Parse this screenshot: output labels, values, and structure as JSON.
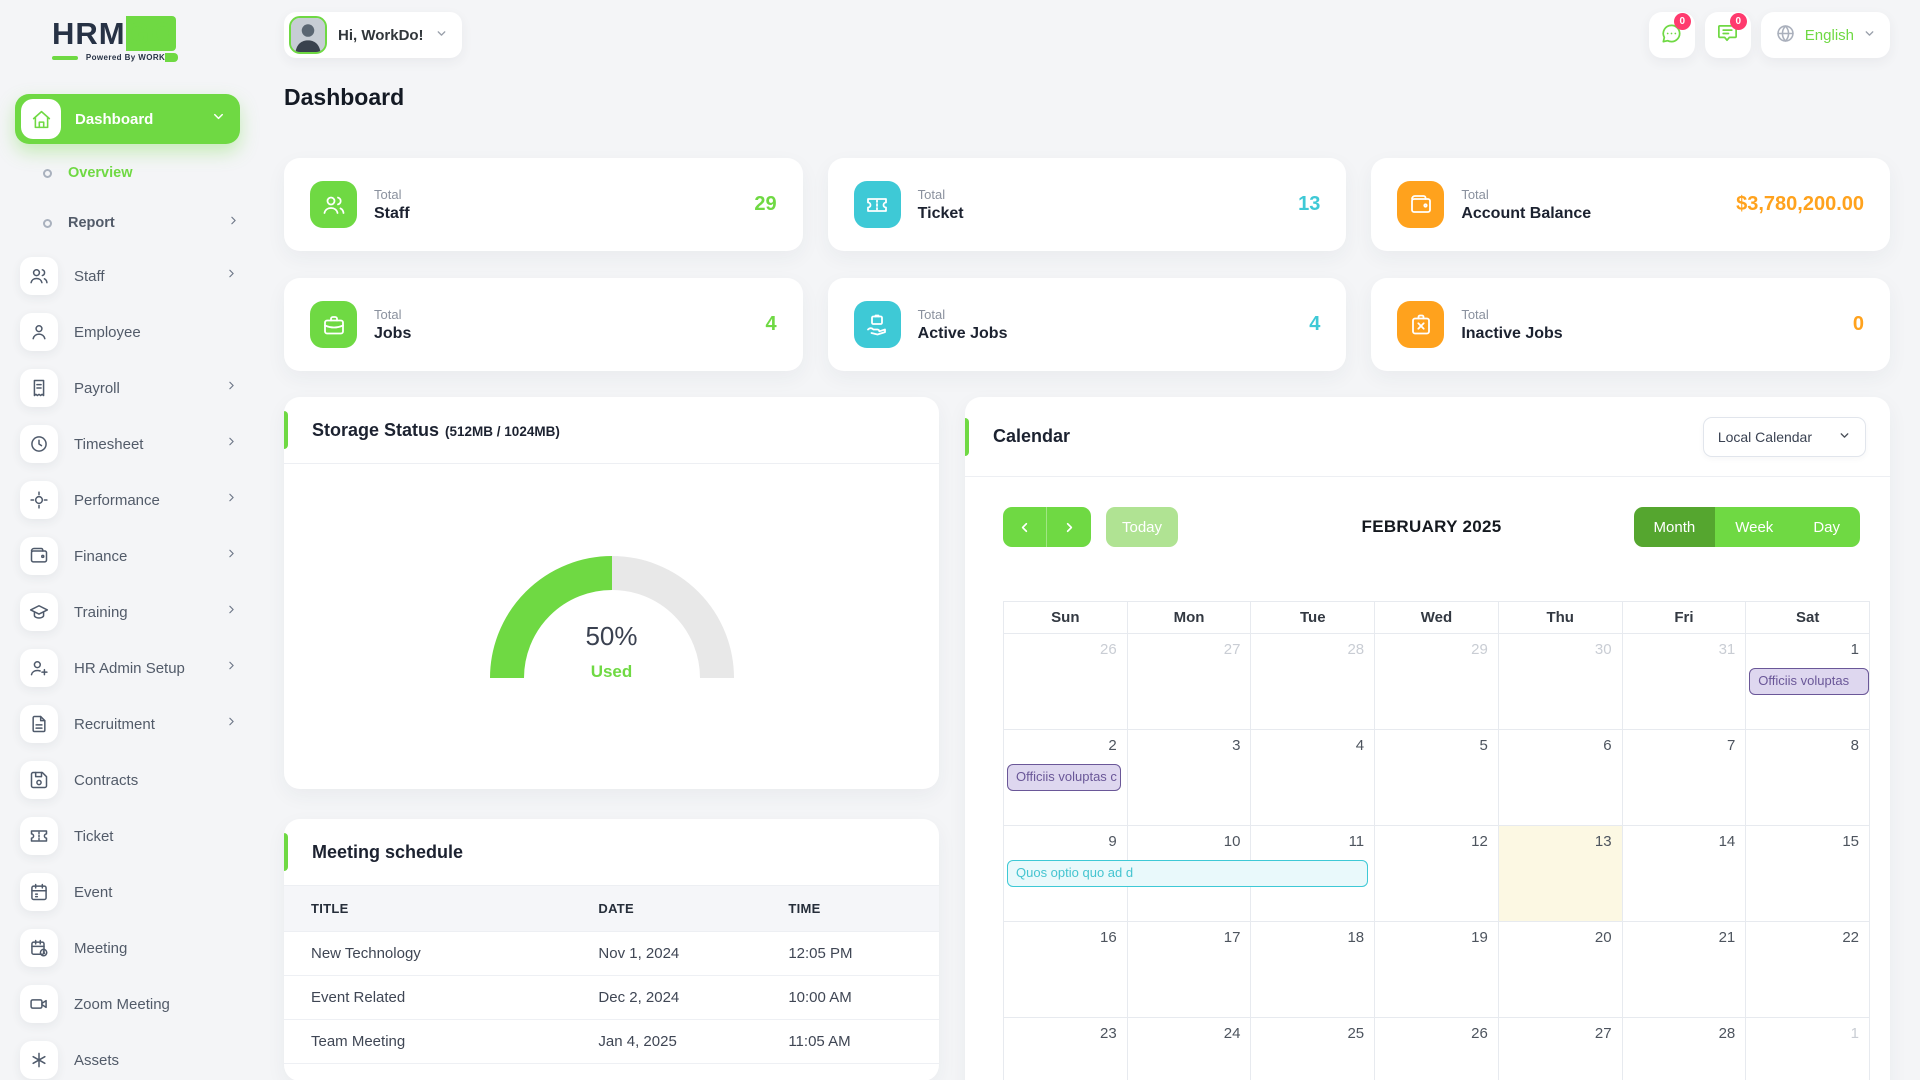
{
  "theme": {
    "primary": "#6fd943",
    "info": "#3ec9d6",
    "warning": "#ffa21d",
    "badge": "#ff3a6e"
  },
  "brand": {
    "name_primary": "HRM",
    "name_accent": "GO",
    "powered_prefix": "Powered By",
    "powered_word_dark": "WORK",
    "powered_word_accent": "DO"
  },
  "topbar": {
    "greeting": "Hi, WorkDo!",
    "messages_badge": "0",
    "notifications_badge": "0",
    "language": "English"
  },
  "sidebar": {
    "dashboard": {
      "label": "Dashboard",
      "icon": "home"
    },
    "sub_items": [
      {
        "label": "Overview",
        "active": true,
        "has_children": false
      },
      {
        "label": "Report",
        "active": false,
        "has_children": true
      }
    ],
    "items": [
      {
        "label": "Staff",
        "icon": "users",
        "has_children": true
      },
      {
        "label": "Employee",
        "icon": "user",
        "has_children": false
      },
      {
        "label": "Payroll",
        "icon": "receipt",
        "has_children": true
      },
      {
        "label": "Timesheet",
        "icon": "clock",
        "has_children": true
      },
      {
        "label": "Performance",
        "icon": "focus",
        "has_children": true
      },
      {
        "label": "Finance",
        "icon": "wallet",
        "has_children": true
      },
      {
        "label": "Training",
        "icon": "graduation",
        "has_children": true
      },
      {
        "label": "HR Admin Setup",
        "icon": "user-plus",
        "has_children": true
      },
      {
        "label": "Recruitment",
        "icon": "file-text",
        "has_children": true
      },
      {
        "label": "Contracts",
        "icon": "save",
        "has_children": false
      },
      {
        "label": "Ticket",
        "icon": "ticket",
        "has_children": false
      },
      {
        "label": "Event",
        "icon": "calendar",
        "has_children": false
      },
      {
        "label": "Meeting",
        "icon": "calendar-clock",
        "has_children": false
      },
      {
        "label": "Zoom Meeting",
        "icon": "video",
        "has_children": false
      },
      {
        "label": "Assets",
        "icon": "asterisk",
        "has_children": false
      }
    ]
  },
  "page": {
    "title": "Dashboard"
  },
  "stat_cards": [
    {
      "eyebrow": "Total",
      "label": "Staff",
      "value": "29",
      "color": "#6fd943",
      "icon": "users"
    },
    {
      "eyebrow": "Total",
      "label": "Ticket",
      "value": "13",
      "color": "#3ec9d6",
      "icon": "ticket"
    },
    {
      "eyebrow": "Total",
      "label": "Account Balance",
      "value": "$3,780,200.00",
      "color": "#ffa21d",
      "icon": "wallet"
    },
    {
      "eyebrow": "Total",
      "label": "Jobs",
      "value": "4",
      "color": "#6fd943",
      "icon": "briefcase"
    },
    {
      "eyebrow": "Total",
      "label": "Active Jobs",
      "value": "4",
      "color": "#3ec9d6",
      "icon": "briefcase-hand"
    },
    {
      "eyebrow": "Total",
      "label": "Inactive Jobs",
      "value": "0",
      "color": "#ffa21d",
      "icon": "briefcase-x"
    }
  ],
  "storage": {
    "title": "Storage Status",
    "subtitle": "(512MB / 1024MB)",
    "chart_data": {
      "type": "gauge",
      "percent": 50,
      "used_mb": 512,
      "total_mb": 1024,
      "center_label": "50%",
      "sub_label": "Used",
      "colors": {
        "used": "#6fd943",
        "free": "#e8e8e8"
      }
    }
  },
  "meetings": {
    "title": "Meeting schedule",
    "columns": [
      "TITLE",
      "DATE",
      "TIME"
    ],
    "rows": [
      {
        "title": "New Technology",
        "date": "Nov 1, 2024",
        "time": "12:05 PM"
      },
      {
        "title": "Event Related",
        "date": "Dec 2, 2024",
        "time": "10:00 AM"
      },
      {
        "title": "Team Meeting",
        "date": "Jan 4, 2025",
        "time": "11:05 AM"
      }
    ]
  },
  "calendar": {
    "title": "Calendar",
    "source_selected": "Local Calendar",
    "toolbar": {
      "today_label": "Today",
      "month_title": "FEBRUARY 2025",
      "views": [
        "Month",
        "Week",
        "Day"
      ],
      "active_view": "Month"
    },
    "day_headers": [
      "Sun",
      "Mon",
      "Tue",
      "Wed",
      "Thu",
      "Fri",
      "Sat"
    ],
    "weeks": [
      {
        "days": [
          {
            "n": "26",
            "muted": true
          },
          {
            "n": "27",
            "muted": true
          },
          {
            "n": "28",
            "muted": true
          },
          {
            "n": "29",
            "muted": true
          },
          {
            "n": "30",
            "muted": true
          },
          {
            "n": "31",
            "muted": true
          },
          {
            "n": "1"
          }
        ]
      },
      {
        "days": [
          {
            "n": "2"
          },
          {
            "n": "3"
          },
          {
            "n": "4"
          },
          {
            "n": "5"
          },
          {
            "n": "6"
          },
          {
            "n": "7"
          },
          {
            "n": "8"
          }
        ]
      },
      {
        "days": [
          {
            "n": "9"
          },
          {
            "n": "10"
          },
          {
            "n": "11"
          },
          {
            "n": "12"
          },
          {
            "n": "13",
            "today": true
          },
          {
            "n": "14"
          },
          {
            "n": "15"
          }
        ]
      },
      {
        "days": [
          {
            "n": "16"
          },
          {
            "n": "17"
          },
          {
            "n": "18"
          },
          {
            "n": "19"
          },
          {
            "n": "20"
          },
          {
            "n": "21"
          },
          {
            "n": "22"
          }
        ]
      },
      {
        "days": [
          {
            "n": "23"
          },
          {
            "n": "24"
          },
          {
            "n": "25"
          },
          {
            "n": "26"
          },
          {
            "n": "27"
          },
          {
            "n": "28"
          },
          {
            "n": "1",
            "muted": true
          }
        ]
      }
    ],
    "events": [
      {
        "label": "Officiis voluptas",
        "week": 0,
        "col": 6,
        "span": 1,
        "style": "purple",
        "clipped_right": true
      },
      {
        "label": "Officiis voluptas c",
        "week": 1,
        "col": 0,
        "span": 1,
        "style": "purple",
        "clipped_right": false
      },
      {
        "label": "Quos optio quo ad d",
        "week": 2,
        "col": 0,
        "span": 3,
        "style": "cyan",
        "clipped_right": false
      }
    ],
    "event_styles": {
      "purple": {
        "border": "#6a5798",
        "bg": "#ded7ef",
        "text": "#6a5798"
      },
      "cyan": {
        "border": "#3ec9d6",
        "bg": "#e9f9fb",
        "text": "#45c4d0"
      }
    }
  }
}
